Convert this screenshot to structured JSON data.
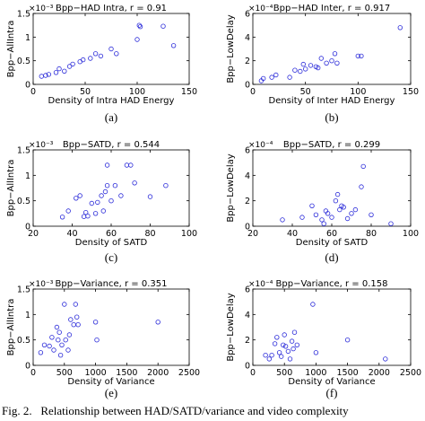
{
  "figure": {
    "caption": "Fig. 2.   Relationship between HAD/SATD/variance and video complexity"
  },
  "style": {
    "marker_color": "#2b2bd9",
    "axis_color": "#000000"
  },
  "chart_data": [
    {
      "type": "scatter",
      "panel_label": "(a)",
      "title": "Bpp−HAD Intra, r = 0.91",
      "xlabel": "Density of Intra HAD Energy",
      "ylabel": "Bpp−AllIntra",
      "xlim": [
        0,
        150
      ],
      "ylim": [
        0,
        0.0015
      ],
      "y_exponent": "×10⁻³",
      "y_scale": 1000,
      "xticks": [
        0,
        50,
        100,
        150
      ],
      "xtick_labels": [
        "0",
        "50",
        "100",
        "150"
      ],
      "yticks": [
        0,
        0.0005,
        0.001,
        0.0015
      ],
      "ytick_labels": [
        "0",
        "0.5",
        "1",
        "1.5"
      ],
      "points": [
        [
          8,
          0.00017
        ],
        [
          12,
          0.00019
        ],
        [
          15,
          0.00021
        ],
        [
          22,
          0.00025
        ],
        [
          25,
          0.00033
        ],
        [
          30,
          0.00028
        ],
        [
          35,
          0.00038
        ],
        [
          38,
          0.00043
        ],
        [
          45,
          0.00048
        ],
        [
          48,
          0.00052
        ],
        [
          55,
          0.00055
        ],
        [
          60,
          0.00065
        ],
        [
          65,
          0.0006
        ],
        [
          75,
          0.00075
        ],
        [
          80,
          0.00065
        ],
        [
          100,
          0.00095
        ],
        [
          102,
          0.00125
        ],
        [
          103,
          0.00122
        ],
        [
          125,
          0.00123
        ],
        [
          135,
          0.00082
        ]
      ]
    },
    {
      "type": "scatter",
      "panel_label": "(b)",
      "title": "Bpp−HAD Inter, r = 0.917",
      "xlabel": "Density of Inter HAD Energy",
      "ylabel": "Bpp−LowDelay",
      "xlim": [
        0,
        150
      ],
      "ylim": [
        0,
        0.0006
      ],
      "y_exponent": "×10⁻⁴",
      "y_scale": 10000,
      "xticks": [
        0,
        50,
        100,
        150
      ],
      "xtick_labels": [
        "0",
        "50",
        "100",
        "150"
      ],
      "yticks": [
        0,
        0.0002,
        0.0004,
        0.0006
      ],
      "ytick_labels": [
        "0",
        "2",
        "4",
        "6"
      ],
      "points": [
        [
          8,
          3e-05
        ],
        [
          10,
          5e-05
        ],
        [
          18,
          6e-05
        ],
        [
          22,
          8e-05
        ],
        [
          35,
          6e-05
        ],
        [
          40,
          0.00012
        ],
        [
          45,
          0.00011
        ],
        [
          48,
          0.00017
        ],
        [
          50,
          0.00013
        ],
        [
          55,
          0.00016
        ],
        [
          60,
          0.00015
        ],
        [
          62,
          0.00014
        ],
        [
          65,
          0.00022
        ],
        [
          70,
          0.00018
        ],
        [
          75,
          0.0002
        ],
        [
          78,
          0.00026
        ],
        [
          80,
          0.00018
        ],
        [
          100,
          0.00024
        ],
        [
          103,
          0.00024
        ],
        [
          140,
          0.00048
        ]
      ]
    },
    {
      "type": "scatter",
      "panel_label": "(c)",
      "title": "Bpp−SATD, r = 0.544",
      "xlabel": "Density of SATD",
      "ylabel": "Bpp−AllIntra",
      "xlim": [
        20,
        100
      ],
      "ylim": [
        0,
        0.0015
      ],
      "y_exponent": "×10⁻³",
      "y_scale": 1000,
      "xticks": [
        20,
        40,
        60,
        80,
        100
      ],
      "xtick_labels": [
        "20",
        "40",
        "60",
        "80",
        "100"
      ],
      "yticks": [
        0,
        0.0005,
        0.001,
        0.0015
      ],
      "ytick_labels": [
        "0",
        "0.5",
        "1",
        "1.5"
      ],
      "points": [
        [
          35,
          0.00018
        ],
        [
          38,
          0.0003
        ],
        [
          42,
          0.00055
        ],
        [
          44,
          0.0006
        ],
        [
          46,
          0.00019
        ],
        [
          47,
          0.00027
        ],
        [
          48,
          0.0002
        ],
        [
          50,
          0.00045
        ],
        [
          52,
          0.00025
        ],
        [
          53,
          0.00047
        ],
        [
          55,
          0.0006
        ],
        [
          56,
          0.0003
        ],
        [
          57,
          0.00068
        ],
        [
          58,
          0.0012
        ],
        [
          58,
          0.0008
        ],
        [
          60,
          0.0005
        ],
        [
          62,
          0.0008
        ],
        [
          65,
          0.0006
        ],
        [
          68,
          0.0012
        ],
        [
          70,
          0.0012
        ],
        [
          72,
          0.00085
        ],
        [
          80,
          0.00058
        ],
        [
          88,
          0.0008
        ]
      ]
    },
    {
      "type": "scatter",
      "panel_label": "(d)",
      "title": "Bpp−SATD, r = 0.299",
      "xlabel": "Density of SATD",
      "ylabel": "Bpp−LowDelay",
      "xlim": [
        20,
        100
      ],
      "ylim": [
        0,
        0.0006
      ],
      "y_exponent": "×10⁻⁴",
      "y_scale": 10000,
      "xticks": [
        20,
        40,
        60,
        80,
        100
      ],
      "xtick_labels": [
        "20",
        "40",
        "60",
        "80",
        "100"
      ],
      "yticks": [
        0,
        0.0002,
        0.0004,
        0.0006
      ],
      "ytick_labels": [
        "0",
        "2",
        "4",
        "6"
      ],
      "points": [
        [
          35,
          5e-05
        ],
        [
          45,
          7e-05
        ],
        [
          50,
          0.00016
        ],
        [
          52,
          9e-05
        ],
        [
          55,
          5e-05
        ],
        [
          56,
          2e-05
        ],
        [
          57,
          0.00012
        ],
        [
          58,
          0.0001
        ],
        [
          60,
          7e-05
        ],
        [
          62,
          0.0002
        ],
        [
          63,
          0.00025
        ],
        [
          64,
          0.00013
        ],
        [
          65,
          0.00016
        ],
        [
          66,
          0.00015
        ],
        [
          68,
          6e-05
        ],
        [
          70,
          0.0001
        ],
        [
          72,
          0.00013
        ],
        [
          75,
          0.00031
        ],
        [
          76,
          0.00047
        ],
        [
          80,
          9e-05
        ],
        [
          90,
          2e-05
        ]
      ]
    },
    {
      "type": "scatter",
      "panel_label": "(e)",
      "title": "Bpp−Variance, r = 0.351",
      "xlabel": "Density of Variance",
      "ylabel": "Bpp−AllIntra",
      "xlim": [
        0,
        2500
      ],
      "ylim": [
        0,
        0.0015
      ],
      "y_exponent": "×10⁻³",
      "y_scale": 1000,
      "xticks": [
        0,
        500,
        1000,
        1500,
        2000,
        2500
      ],
      "xtick_labels": [
        "0",
        "500",
        "1000",
        "1500",
        "2000",
        "2500"
      ],
      "yticks": [
        0,
        0.0005,
        0.001,
        0.0015
      ],
      "ytick_labels": [
        "0",
        "0.5",
        "1",
        "1.5"
      ],
      "points": [
        [
          120,
          0.00025
        ],
        [
          180,
          0.0004
        ],
        [
          260,
          0.00038
        ],
        [
          300,
          0.00055
        ],
        [
          330,
          0.0003
        ],
        [
          380,
          0.00075
        ],
        [
          400,
          0.0005
        ],
        [
          420,
          0.00065
        ],
        [
          440,
          0.0002
        ],
        [
          460,
          0.0004
        ],
        [
          500,
          0.0012
        ],
        [
          520,
          0.0005
        ],
        [
          560,
          0.0003
        ],
        [
          580,
          0.0006
        ],
        [
          600,
          0.0009
        ],
        [
          650,
          0.0008
        ],
        [
          680,
          0.0012
        ],
        [
          700,
          0.00095
        ],
        [
          720,
          0.0008
        ],
        [
          1000,
          0.00085
        ],
        [
          1020,
          0.0005
        ],
        [
          2000,
          0.00085
        ]
      ]
    },
    {
      "type": "scatter",
      "panel_label": "(f)",
      "title": "Bpp−Variance, r = 0.158",
      "xlabel": "Density of Variance",
      "ylabel": "Bpp−LowDelay",
      "xlim": [
        0,
        2500
      ],
      "ylim": [
        0,
        0.0006
      ],
      "y_exponent": "×10⁻⁴",
      "y_scale": 10000,
      "xticks": [
        0,
        500,
        1000,
        1500,
        2000,
        2500
      ],
      "xtick_labels": [
        "0",
        "500",
        "1000",
        "1500",
        "2000",
        "2500"
      ],
      "yticks": [
        0,
        0.0002,
        0.0004,
        0.0006
      ],
      "ytick_labels": [
        "0",
        "2",
        "4",
        "6"
      ],
      "points": [
        [
          200,
          8e-05
        ],
        [
          260,
          5e-05
        ],
        [
          300,
          8e-05
        ],
        [
          350,
          0.00017
        ],
        [
          380,
          0.00022
        ],
        [
          420,
          0.0001
        ],
        [
          450,
          7e-05
        ],
        [
          480,
          0.00016
        ],
        [
          500,
          0.00024
        ],
        [
          520,
          0.00015
        ],
        [
          560,
          0.00011
        ],
        [
          590,
          5e-05
        ],
        [
          620,
          0.00019
        ],
        [
          640,
          0.00013
        ],
        [
          660,
          0.00026
        ],
        [
          700,
          0.00016
        ],
        [
          950,
          0.00048
        ],
        [
          1000,
          0.0001
        ],
        [
          1500,
          0.0002
        ],
        [
          2100,
          5e-05
        ]
      ]
    }
  ]
}
